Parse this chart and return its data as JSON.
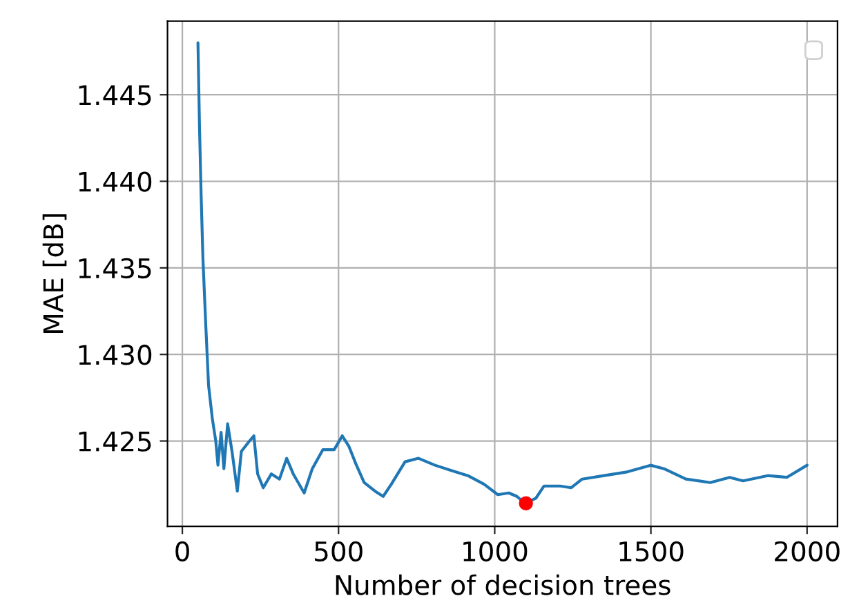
{
  "chart_data": {
    "type": "line",
    "xlabel": "Number of decision trees",
    "ylabel": "MAE [dB]",
    "xlim": [
      -47.5,
      2097.5
    ],
    "ylim": [
      1.42007,
      1.44925
    ],
    "xticks": [
      0,
      500,
      1000,
      1500,
      2000
    ],
    "yticks": [
      {
        "value": 1.425,
        "label": "1.425"
      },
      {
        "value": 1.43,
        "label": "1.430"
      },
      {
        "value": 1.435,
        "label": "1.435"
      },
      {
        "value": 1.44,
        "label": "1.440"
      },
      {
        "value": 1.445,
        "label": "1.445"
      }
    ],
    "grid": true,
    "series": [
      {
        "color": "#1f77b4",
        "x": [
          50,
          55,
          60,
          66,
          75,
          84,
          96,
          107,
          114,
          124,
          133,
          145,
          159,
          176,
          189,
          215,
          229,
          241,
          259,
          285,
          311,
          334,
          355,
          390,
          416,
          450,
          486,
          512,
          533,
          555,
          582,
          617,
          643,
          669,
          713,
          756,
          809,
          861,
          914,
          966,
          1010,
          1045,
          1071,
          1097,
          1132,
          1158,
          1210,
          1245,
          1280,
          1350,
          1420,
          1499,
          1542,
          1612,
          1690,
          1752,
          1795,
          1874,
          1935,
          2000
        ],
        "values": [
          1.448,
          1.4431,
          1.4393,
          1.4355,
          1.4317,
          1.4282,
          1.4263,
          1.425,
          1.4236,
          1.4255,
          1.4234,
          1.426,
          1.4244,
          1.4221,
          1.4244,
          1.425,
          1.4253,
          1.4231,
          1.4223,
          1.4231,
          1.4228,
          1.424,
          1.4231,
          1.422,
          1.4234,
          1.4245,
          1.4245,
          1.4253,
          1.4247,
          1.4237,
          1.4226,
          1.4221,
          1.4218,
          1.4225,
          1.4238,
          1.424,
          1.4236,
          1.4233,
          1.423,
          1.4225,
          1.4219,
          1.422,
          1.4218,
          1.4214,
          1.4217,
          1.4224,
          1.4224,
          1.4223,
          1.4228,
          1.423,
          1.4232,
          1.4236,
          1.4234,
          1.4228,
          1.4226,
          1.4229,
          1.4227,
          1.423,
          1.4229,
          1.4236
        ]
      },
      {
        "type": "scatter",
        "color": "#ff0000",
        "x": [
          1100
        ],
        "values": [
          1.4214
        ]
      }
    ]
  }
}
